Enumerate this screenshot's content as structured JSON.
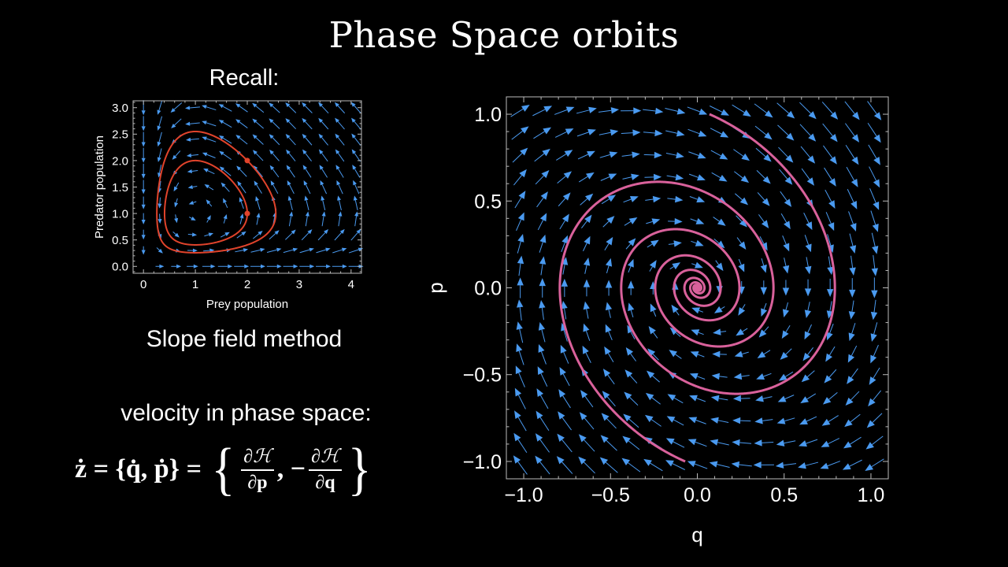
{
  "slide": {
    "title": "Phase Space orbits",
    "recall_label": "Recall:",
    "method_label": "Slope field method",
    "velocity_label": "velocity in phase space:",
    "formula": {
      "lhs": "ż = {q̇, ṗ} = ",
      "open_brace": "{",
      "frac1_num": "∂ℋ",
      "frac1_den": "∂p",
      "separator": ", −",
      "frac2_num": "∂ℋ",
      "frac2_den": "∂q",
      "close_brace": "}"
    }
  },
  "chart_data": [
    {
      "type": "vector-field",
      "name": "predator-prey",
      "xlabel": "Prey population",
      "ylabel": "Predator population",
      "xlim": [
        -0.2,
        4.2
      ],
      "ylim": [
        -0.13,
        3.13
      ],
      "xticks": [
        "0",
        "1",
        "2",
        "3",
        "4"
      ],
      "yticks": [
        "0.0",
        "0.5",
        "1.0",
        "1.5",
        "2.0",
        "2.5",
        "3.0"
      ],
      "equilibrium": [
        1,
        1
      ],
      "trajectories": [
        {
          "start": [
            2,
            1
          ]
        },
        {
          "start": [
            2,
            2
          ]
        }
      ],
      "colors": {
        "arrows": "#4a9af0",
        "curve": "#e0432b"
      }
    },
    {
      "type": "vector-field",
      "name": "phase-space",
      "xlabel": "q",
      "ylabel": "p",
      "xlim": [
        -1.1,
        1.1
      ],
      "ylim": [
        -1.1,
        1.1
      ],
      "xticks": [
        "−1.0",
        "−0.5",
        "0.0",
        "0.5",
        "1.0"
      ],
      "yticks": [
        "−1.0",
        "−0.5",
        "0.0",
        "0.5",
        "1.0"
      ],
      "trajectories": [
        {
          "start": [
            0.07,
            1.0
          ]
        },
        {
          "start": [
            -0.07,
            -1.0
          ]
        }
      ],
      "colors": {
        "arrows": "#4a9af0",
        "curve": "#d9619b"
      }
    }
  ]
}
